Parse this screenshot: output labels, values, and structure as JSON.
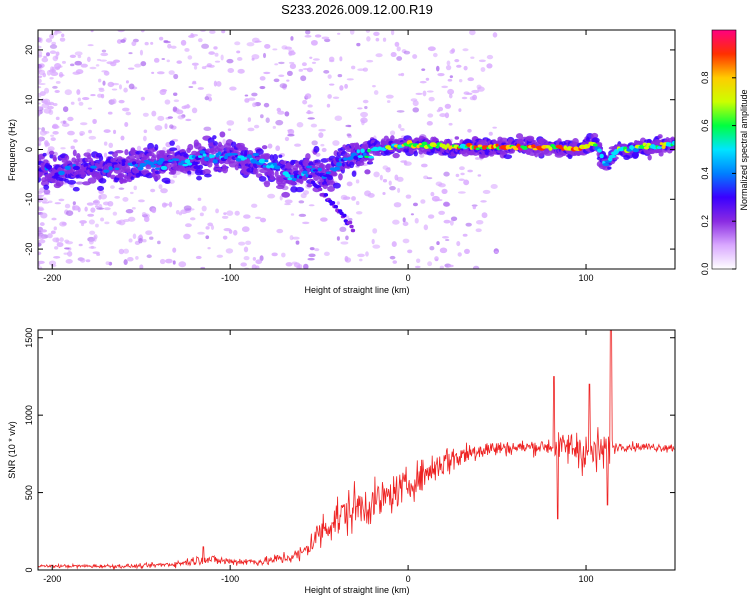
{
  "title": "S233.2026.009.12.00.R19",
  "colors": {
    "background": "#ffffff",
    "axis": "#000000",
    "snr_line": "#ee2222",
    "colormap": [
      "#ffffff",
      "#d9a8ff",
      "#8a2be2",
      "#3a00ff",
      "#0080ff",
      "#00e5ff",
      "#00ff40",
      "#ccff00",
      "#ffcc00",
      "#ff3000",
      "#ff0080"
    ]
  },
  "chart_data": [
    {
      "type": "heatmap",
      "name": "spectrogram",
      "title": "S233.2026.009.12.00.R19",
      "xlabel": "Height of straight line (km)",
      "ylabel": "Frequency (Hz)",
      "xlim": [
        -208,
        150
      ],
      "ylim": [
        -24,
        24
      ],
      "xticks": [
        -200,
        -100,
        0,
        100
      ],
      "xtick_labels": [
        "-200",
        "-100",
        "0",
        "100"
      ],
      "yticks": [
        -20,
        -10,
        0,
        10,
        20
      ],
      "ytick_labels": [
        "-20",
        "-10",
        "0",
        "10",
        "20"
      ],
      "colorbar": {
        "label": "Normalized spectral amplitude",
        "range": [
          0,
          1
        ],
        "ticks": [
          0.0,
          0.2,
          0.4,
          0.6,
          0.8
        ],
        "tick_labels": [
          "0.0",
          "0.2",
          "0.4",
          "0.6",
          "0.8"
        ]
      },
      "ridge": [
        {
          "x": -208,
          "freq": -4,
          "amp": 0.25
        },
        {
          "x": -180,
          "freq": -4,
          "amp": 0.25
        },
        {
          "x": -150,
          "freq": -3,
          "amp": 0.3
        },
        {
          "x": -120,
          "freq": -2,
          "amp": 0.35
        },
        {
          "x": -100,
          "freq": -1,
          "amp": 0.35
        },
        {
          "x": -80,
          "freq": -3,
          "amp": 0.4
        },
        {
          "x": -65,
          "freq": -5.5,
          "amp": 0.35
        },
        {
          "x": -55,
          "freq": -4,
          "amp": 0.3
        },
        {
          "x": -45,
          "freq": -5,
          "amp": 0.3
        },
        {
          "x": -35,
          "freq": -2,
          "amp": 0.3
        },
        {
          "x": -20,
          "freq": 0,
          "amp": 0.45
        },
        {
          "x": 0,
          "freq": 1,
          "amp": 0.6
        },
        {
          "x": 25,
          "freq": 0.5,
          "amp": 0.65
        },
        {
          "x": 50,
          "freq": 0.5,
          "amp": 0.7
        },
        {
          "x": 75,
          "freq": 0.5,
          "amp": 0.7
        },
        {
          "x": 95,
          "freq": 0,
          "amp": 0.75
        },
        {
          "x": 105,
          "freq": 1.5,
          "amp": 0.6
        },
        {
          "x": 111,
          "freq": -3,
          "amp": 0.3
        },
        {
          "x": 118,
          "freq": 0,
          "amp": 0.5
        },
        {
          "x": 150,
          "freq": 1,
          "amp": 0.6
        }
      ],
      "descending_branch": [
        {
          "x": -55,
          "freq": -6
        },
        {
          "x": -45,
          "freq": -10
        },
        {
          "x": -35,
          "freq": -14
        },
        {
          "x": -31,
          "freq": -15.5
        }
      ]
    },
    {
      "type": "line",
      "name": "snr",
      "xlabel": "Height of straight line (km)",
      "ylabel": "SNR (10 * v/v)",
      "xlim": [
        -208,
        150
      ],
      "ylim": [
        0,
        1550
      ],
      "xticks": [
        -200,
        -100,
        0,
        100
      ],
      "xtick_labels": [
        "-200",
        "-100",
        "0",
        "100"
      ],
      "yticks": [
        0,
        500,
        1000,
        1500
      ],
      "ytick_labels": [
        "0",
        "500",
        "1000",
        "1500"
      ],
      "envelope": [
        {
          "x": -208,
          "mean": 25,
          "noise": 15
        },
        {
          "x": -150,
          "mean": 25,
          "noise": 20
        },
        {
          "x": -130,
          "mean": 40,
          "noise": 30
        },
        {
          "x": -115,
          "mean": 70,
          "noise": 50
        },
        {
          "x": -100,
          "mean": 55,
          "noise": 40
        },
        {
          "x": -80,
          "mean": 55,
          "noise": 40
        },
        {
          "x": -60,
          "mean": 100,
          "noise": 80
        },
        {
          "x": -45,
          "mean": 300,
          "noise": 200
        },
        {
          "x": -30,
          "mean": 400,
          "noise": 220
        },
        {
          "x": -15,
          "mean": 450,
          "noise": 180
        },
        {
          "x": 0,
          "mean": 550,
          "noise": 150
        },
        {
          "x": 20,
          "mean": 700,
          "noise": 150
        },
        {
          "x": 40,
          "mean": 780,
          "noise": 100
        },
        {
          "x": 60,
          "mean": 790,
          "noise": 60
        },
        {
          "x": 80,
          "mean": 800,
          "noise": 80
        },
        {
          "x": 95,
          "mean": 790,
          "noise": 200
        },
        {
          "x": 105,
          "mean": 750,
          "noise": 250
        },
        {
          "x": 118,
          "mean": 800,
          "noise": 40
        },
        {
          "x": 150,
          "mean": 790,
          "noise": 40
        }
      ],
      "spikes": [
        {
          "x": -115,
          "y": 150
        },
        {
          "x": 82,
          "y": 1250
        },
        {
          "x": 84,
          "y": 330
        },
        {
          "x": 102,
          "y": 1200
        },
        {
          "x": 112,
          "y": 420
        },
        {
          "x": 114,
          "y": 1550
        }
      ]
    }
  ]
}
